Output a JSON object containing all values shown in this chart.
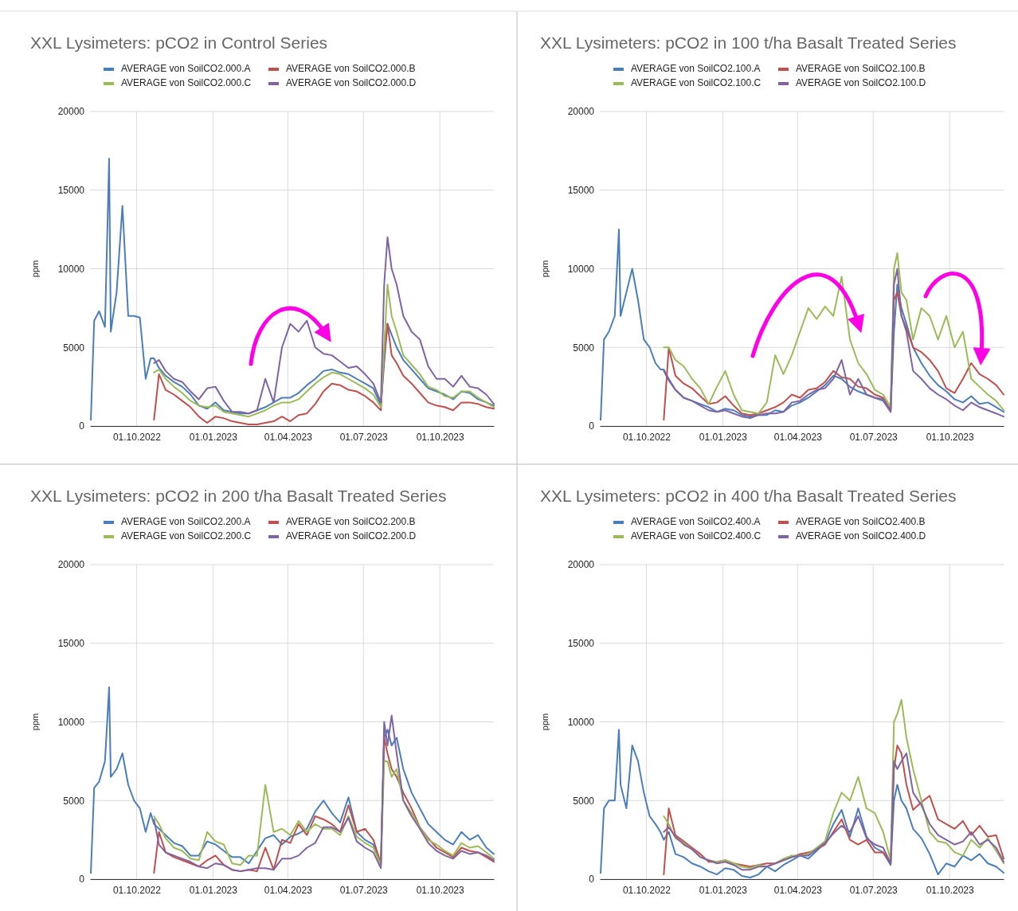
{
  "chart_data": [
    {
      "type": "line",
      "title": "XXL Lysimeters: pCO2 in Control Series",
      "ylabel": "ppm",
      "legend": "top",
      "grid": true,
      "xlim": [
        "2022-08-06",
        "2023-12-05"
      ],
      "ylim": [
        0,
        20000
      ],
      "yticks": [
        0,
        5000,
        10000,
        15000,
        20000
      ],
      "xticks": [
        {
          "value": "2022-10-01",
          "label": "01.10.2022"
        },
        {
          "value": "2023-01-01",
          "label": "01.01.2023"
        },
        {
          "value": "2023-04-01",
          "label": "01.04.2023"
        },
        {
          "value": "2023-07-01",
          "label": "01.07.2023"
        },
        {
          "value": "2023-10-01",
          "label": "01.10.2023"
        }
      ],
      "x": [
        "2022-08-07",
        "2022-08-11",
        "2022-08-17",
        "2022-08-24",
        "2022-08-29",
        "2022-08-31",
        "2022-09-07",
        "2022-09-14",
        "2022-09-21",
        "2022-09-28",
        "2022-10-05",
        "2022-10-12",
        "2022-10-18",
        "2022-10-22",
        "2022-10-28",
        "2022-11-05",
        "2022-11-15",
        "2022-11-25",
        "2022-12-05",
        "2022-12-15",
        "2022-12-25",
        "2023-01-04",
        "2023-01-14",
        "2023-01-24",
        "2023-02-03",
        "2023-02-13",
        "2023-02-23",
        "2023-03-05",
        "2023-03-15",
        "2023-03-25",
        "2023-04-04",
        "2023-04-14",
        "2023-04-24",
        "2023-05-04",
        "2023-05-14",
        "2023-05-24",
        "2023-06-03",
        "2023-06-13",
        "2023-06-23",
        "2023-07-03",
        "2023-07-13",
        "2023-07-22",
        "2023-07-26",
        "2023-07-30",
        "2023-08-04",
        "2023-08-10",
        "2023-08-18",
        "2023-08-28",
        "2023-09-07",
        "2023-09-17",
        "2023-09-27",
        "2023-10-07",
        "2023-10-17",
        "2023-10-27",
        "2023-11-06",
        "2023-11-16",
        "2023-11-26",
        "2023-12-05"
      ],
      "series": [
        {
          "name": "AVERAGE von SoilCO2.000.A",
          "color": "#4a7ebb",
          "values": [
            400,
            6700,
            7300,
            6300,
            17000,
            6000,
            8500,
            14000,
            7000,
            7000,
            6900,
            3000,
            4300,
            4300,
            3700,
            3200,
            2800,
            2500,
            2000,
            1300,
            1100,
            1500,
            1000,
            900,
            800,
            800,
            1000,
            1200,
            1500,
            1800,
            1800,
            2100,
            2600,
            3000,
            3500,
            3600,
            3400,
            3300,
            3000,
            2700,
            2400,
            1300,
            4000,
            6500,
            5800,
            5000,
            4200,
            3600,
            3000,
            2400,
            2200,
            2000,
            1700,
            2200,
            2100,
            1700,
            1500,
            1300
          ]
        },
        {
          "name": "AVERAGE von SoilCO2.000.B",
          "color": "#c0504d",
          "values": [
            null,
            null,
            null,
            null,
            null,
            null,
            null,
            null,
            null,
            null,
            null,
            null,
            null,
            400,
            3300,
            2300,
            2000,
            1600,
            1200,
            600,
            200,
            600,
            500,
            300,
            200,
            100,
            100,
            200,
            300,
            600,
            300,
            700,
            800,
            1400,
            2200,
            2700,
            2600,
            2300,
            2200,
            1900,
            1500,
            1000,
            4500,
            6500,
            4500,
            4000,
            3200,
            2700,
            2100,
            1500,
            1300,
            1200,
            1000,
            1500,
            1500,
            1400,
            1200,
            1100
          ]
        },
        {
          "name": "AVERAGE von SoilCO2.000.C",
          "color": "#9bbb59",
          "values": [
            null,
            null,
            null,
            null,
            null,
            null,
            null,
            null,
            null,
            null,
            null,
            null,
            null,
            3400,
            3600,
            3000,
            2500,
            2100,
            1600,
            1300,
            1200,
            1300,
            900,
            800,
            700,
            600,
            800,
            1000,
            1300,
            1500,
            1500,
            1700,
            2200,
            2700,
            3100,
            3400,
            3300,
            3000,
            2700,
            2400,
            2000,
            1200,
            5000,
            9000,
            7000,
            6000,
            4500,
            3900,
            3300,
            2500,
            2300,
            1900,
            1800,
            2200,
            2200,
            1800,
            1500,
            1200
          ]
        },
        {
          "name": "AVERAGE von SoilCO2.000.D",
          "color": "#8064a2",
          "values": [
            null,
            null,
            null,
            null,
            null,
            null,
            null,
            null,
            null,
            null,
            null,
            null,
            null,
            4000,
            4200,
            3500,
            3000,
            2800,
            2200,
            1700,
            2400,
            2500,
            1600,
            900,
            900,
            800,
            1000,
            3000,
            1500,
            5000,
            6500,
            6000,
            6700,
            5000,
            4600,
            4500,
            4100,
            3700,
            3800,
            3300,
            2700,
            1500,
            9000,
            12000,
            10000,
            9000,
            7000,
            6000,
            5500,
            3800,
            3000,
            3000,
            2500,
            3200,
            2500,
            2400,
            2000,
            1400
          ]
        }
      ]
    },
    {
      "type": "line",
      "title": "XXL Lysimeters: pCO2 in 100 t/ha Basalt Treated Series",
      "ylabel": "ppm",
      "legend": "top",
      "grid": true,
      "xlim": [
        "2022-08-06",
        "2023-12-05"
      ],
      "ylim": [
        0,
        20000
      ],
      "yticks": [
        0,
        5000,
        10000,
        15000,
        20000
      ],
      "xticks": [
        {
          "value": "2022-10-01",
          "label": "01.10.2022"
        },
        {
          "value": "2023-01-01",
          "label": "01.01.2023"
        },
        {
          "value": "2023-04-01",
          "label": "01.04.2023"
        },
        {
          "value": "2023-07-01",
          "label": "01.07.2023"
        },
        {
          "value": "2023-10-01",
          "label": "01.10.2023"
        }
      ],
      "x": [
        "2022-08-07",
        "2022-08-11",
        "2022-08-17",
        "2022-08-24",
        "2022-08-29",
        "2022-08-31",
        "2022-09-07",
        "2022-09-14",
        "2022-09-21",
        "2022-09-28",
        "2022-10-05",
        "2022-10-12",
        "2022-10-18",
        "2022-10-22",
        "2022-10-28",
        "2022-11-05",
        "2022-11-15",
        "2022-11-25",
        "2022-12-05",
        "2022-12-15",
        "2022-12-25",
        "2023-01-04",
        "2023-01-14",
        "2023-01-24",
        "2023-02-03",
        "2023-02-13",
        "2023-02-23",
        "2023-03-05",
        "2023-03-15",
        "2023-03-25",
        "2023-04-04",
        "2023-04-14",
        "2023-04-24",
        "2023-05-04",
        "2023-05-14",
        "2023-05-24",
        "2023-06-03",
        "2023-06-13",
        "2023-06-23",
        "2023-07-03",
        "2023-07-13",
        "2023-07-22",
        "2023-07-26",
        "2023-07-30",
        "2023-08-04",
        "2023-08-10",
        "2023-08-18",
        "2023-08-28",
        "2023-09-07",
        "2023-09-17",
        "2023-09-27",
        "2023-10-07",
        "2023-10-17",
        "2023-10-27",
        "2023-11-06",
        "2023-11-16",
        "2023-11-26",
        "2023-12-05"
      ],
      "series": [
        {
          "name": "AVERAGE von SoilCO2.100.A",
          "color": "#4a7ebb",
          "values": [
            400,
            5500,
            6000,
            7000,
            12500,
            7000,
            8500,
            10000,
            8000,
            5500,
            5000,
            4000,
            3600,
            3600,
            3000,
            2300,
            1800,
            1600,
            1400,
            1200,
            900,
            1100,
            1000,
            700,
            600,
            700,
            700,
            1000,
            900,
            1300,
            1500,
            1800,
            2200,
            2600,
            3200,
            3000,
            2500,
            2200,
            2000,
            1800,
            1600,
            900,
            6000,
            9000,
            7500,
            6500,
            5000,
            4000,
            3200,
            2600,
            2200,
            1700,
            1500,
            1900,
            1400,
            1500,
            1200,
            900
          ]
        },
        {
          "name": "AVERAGE von SoilCO2.100.B",
          "color": "#c0504d",
          "values": [
            null,
            null,
            null,
            null,
            null,
            null,
            null,
            null,
            null,
            null,
            null,
            null,
            null,
            400,
            5000,
            3200,
            2700,
            2400,
            1900,
            1400,
            1500,
            1900,
            1300,
            800,
            700,
            800,
            1000,
            1200,
            1500,
            2000,
            1800,
            2300,
            2400,
            2800,
            3500,
            3100,
            3000,
            2500,
            2400,
            2000,
            1800,
            1000,
            8000,
            8500,
            7000,
            6200,
            5000,
            4700,
            4200,
            3500,
            2400,
            2100,
            3000,
            4000,
            3300,
            3000,
            2600,
            2000
          ]
        },
        {
          "name": "AVERAGE von SoilCO2.100.C",
          "color": "#9bbb59",
          "values": [
            null,
            null,
            null,
            null,
            null,
            null,
            null,
            null,
            null,
            null,
            null,
            null,
            null,
            5000,
            5000,
            4200,
            3800,
            3000,
            2400,
            1400,
            2500,
            3500,
            2000,
            1000,
            900,
            800,
            1500,
            4500,
            3300,
            4500,
            6000,
            7500,
            6800,
            7600,
            7000,
            9500,
            5500,
            4000,
            3300,
            2300,
            2000,
            1200,
            10000,
            11000,
            8500,
            8000,
            5500,
            7500,
            7000,
            5500,
            7000,
            5000,
            6000,
            3000,
            2500,
            2000,
            1600,
            1000
          ]
        },
        {
          "name": "AVERAGE von SoilCO2.100.D",
          "color": "#8064a2",
          "values": [
            null,
            null,
            null,
            null,
            null,
            null,
            null,
            null,
            null,
            null,
            null,
            null,
            null,
            3500,
            2900,
            2300,
            1800,
            1600,
            1300,
            1000,
            900,
            1000,
            800,
            600,
            500,
            700,
            800,
            800,
            900,
            1500,
            1600,
            2000,
            2300,
            2400,
            3000,
            4200,
            2000,
            3000,
            2000,
            1800,
            1700,
            900,
            9000,
            10000,
            7000,
            6000,
            3500,
            3000,
            2400,
            2000,
            1700,
            1300,
            1000,
            1500,
            1200,
            1000,
            800,
            600
          ]
        }
      ]
    },
    {
      "type": "line",
      "title": "XXL Lysimeters: pCO2 in 200 t/ha Basalt Treated Series",
      "ylabel": "ppm",
      "legend": "top",
      "grid": true,
      "xlim": [
        "2022-08-06",
        "2023-12-05"
      ],
      "ylim": [
        0,
        20000
      ],
      "yticks": [
        0,
        5000,
        10000,
        15000,
        20000
      ],
      "xticks": [
        {
          "value": "2022-10-01",
          "label": "01.10.2022"
        },
        {
          "value": "2023-01-01",
          "label": "01.01.2023"
        },
        {
          "value": "2023-04-01",
          "label": "01.04.2023"
        },
        {
          "value": "2023-07-01",
          "label": "01.07.2023"
        },
        {
          "value": "2023-10-01",
          "label": "01.10.2023"
        }
      ],
      "x": [
        "2022-08-07",
        "2022-08-11",
        "2022-08-17",
        "2022-08-24",
        "2022-08-29",
        "2022-08-31",
        "2022-09-07",
        "2022-09-14",
        "2022-09-21",
        "2022-09-28",
        "2022-10-05",
        "2022-10-12",
        "2022-10-18",
        "2022-10-22",
        "2022-10-28",
        "2022-11-05",
        "2022-11-15",
        "2022-11-25",
        "2022-12-05",
        "2022-12-15",
        "2022-12-25",
        "2023-01-04",
        "2023-01-14",
        "2023-01-24",
        "2023-02-03",
        "2023-02-13",
        "2023-02-23",
        "2023-03-05",
        "2023-03-15",
        "2023-03-25",
        "2023-04-04",
        "2023-04-14",
        "2023-04-24",
        "2023-05-04",
        "2023-05-14",
        "2023-05-24",
        "2023-06-03",
        "2023-06-13",
        "2023-06-23",
        "2023-07-03",
        "2023-07-13",
        "2023-07-22",
        "2023-07-26",
        "2023-07-30",
        "2023-08-04",
        "2023-08-10",
        "2023-08-18",
        "2023-08-28",
        "2023-09-07",
        "2023-09-17",
        "2023-09-27",
        "2023-10-07",
        "2023-10-17",
        "2023-10-27",
        "2023-11-06",
        "2023-11-16",
        "2023-11-26",
        "2023-12-05"
      ],
      "series": [
        {
          "name": "AVERAGE von SoilCO2.200.A",
          "color": "#4a7ebb",
          "values": [
            400,
            5800,
            6200,
            7500,
            12200,
            6500,
            7000,
            8000,
            6000,
            5000,
            4500,
            3000,
            4200,
            3500,
            3200,
            2800,
            2300,
            2100,
            1500,
            1500,
            2400,
            2200,
            1800,
            1400,
            1400,
            1000,
            1800,
            2600,
            2800,
            2200,
            2700,
            2900,
            3200,
            4300,
            5000,
            4200,
            3600,
            5200,
            3000,
            2500,
            2200,
            900,
            9000,
            9500,
            8500,
            9000,
            7000,
            5500,
            4500,
            3500,
            3000,
            2500,
            2200,
            3000,
            2500,
            2800,
            2000,
            1600
          ]
        },
        {
          "name": "AVERAGE von SoilCO2.200.B",
          "color": "#c0504d",
          "values": [
            null,
            null,
            null,
            null,
            null,
            null,
            null,
            null,
            null,
            null,
            null,
            null,
            null,
            400,
            3000,
            1700,
            1400,
            1200,
            1000,
            800,
            1200,
            1500,
            900,
            600,
            500,
            600,
            500,
            2000,
            600,
            2500,
            2300,
            3500,
            2800,
            4000,
            3800,
            3500,
            3000,
            4700,
            3000,
            3200,
            2500,
            1000,
            9000,
            8000,
            7000,
            6500,
            5500,
            4500,
            3300,
            2600,
            2000,
            1700,
            1400,
            2000,
            1800,
            1700,
            1400,
            1100
          ]
        },
        {
          "name": "AVERAGE von SoilCO2.200.C",
          "color": "#9bbb59",
          "values": [
            null,
            null,
            null,
            null,
            null,
            null,
            null,
            null,
            null,
            null,
            null,
            null,
            null,
            4000,
            3500,
            2600,
            2000,
            1800,
            1300,
            1200,
            3000,
            2400,
            2200,
            1000,
            900,
            1500,
            1500,
            6000,
            3000,
            3200,
            2800,
            3700,
            3000,
            3500,
            3200,
            3200,
            2800,
            4000,
            2700,
            2300,
            2000,
            900,
            7500,
            7500,
            6500,
            7000,
            5000,
            4200,
            3300,
            2500,
            2200,
            1800,
            1500,
            2300,
            2000,
            2100,
            1700,
            1300
          ]
        },
        {
          "name": "AVERAGE von SoilCO2.200.D",
          "color": "#8064a2",
          "values": [
            null,
            null,
            null,
            null,
            null,
            null,
            null,
            null,
            null,
            null,
            null,
            null,
            null,
            3800,
            2200,
            1700,
            1500,
            1300,
            1100,
            800,
            700,
            1000,
            900,
            600,
            500,
            600,
            700,
            700,
            600,
            1300,
            1300,
            1500,
            2000,
            2300,
            3300,
            3300,
            3000,
            3900,
            2400,
            2000,
            1700,
            700,
            10000,
            8500,
            10400,
            8000,
            5000,
            4000,
            3200,
            2300,
            1800,
            1500,
            1300,
            1800,
            1600,
            1700,
            1500,
            1200
          ]
        }
      ]
    },
    {
      "type": "line",
      "title": "XXL Lysimeters: pCO2 in 400 t/ha Basalt Treated Series",
      "ylabel": "ppm",
      "legend": "top",
      "grid": true,
      "xlim": [
        "2022-08-06",
        "2023-12-05"
      ],
      "ylim": [
        0,
        20000
      ],
      "yticks": [
        0,
        5000,
        10000,
        15000,
        20000
      ],
      "xticks": [
        {
          "value": "2022-10-01",
          "label": "01.10.2022"
        },
        {
          "value": "2023-01-01",
          "label": "01.01.2023"
        },
        {
          "value": "2023-04-01",
          "label": "01.04.2023"
        },
        {
          "value": "2023-07-01",
          "label": "01.07.2023"
        },
        {
          "value": "2023-10-01",
          "label": "01.10.2023"
        }
      ],
      "x": [
        "2022-08-07",
        "2022-08-11",
        "2022-08-17",
        "2022-08-24",
        "2022-08-29",
        "2022-08-31",
        "2022-09-07",
        "2022-09-14",
        "2022-09-21",
        "2022-09-28",
        "2022-10-05",
        "2022-10-12",
        "2022-10-18",
        "2022-10-22",
        "2022-10-28",
        "2022-11-05",
        "2022-11-15",
        "2022-11-25",
        "2022-12-05",
        "2022-12-15",
        "2022-12-25",
        "2023-01-04",
        "2023-01-14",
        "2023-01-24",
        "2023-02-03",
        "2023-02-13",
        "2023-02-23",
        "2023-03-05",
        "2023-03-15",
        "2023-03-25",
        "2023-04-04",
        "2023-04-14",
        "2023-04-24",
        "2023-05-04",
        "2023-05-14",
        "2023-05-24",
        "2023-06-03",
        "2023-06-13",
        "2023-06-23",
        "2023-07-03",
        "2023-07-13",
        "2023-07-22",
        "2023-07-26",
        "2023-07-30",
        "2023-08-04",
        "2023-08-10",
        "2023-08-18",
        "2023-08-28",
        "2023-09-07",
        "2023-09-17",
        "2023-09-27",
        "2023-10-07",
        "2023-10-17",
        "2023-10-27",
        "2023-11-06",
        "2023-11-16",
        "2023-11-26",
        "2023-12-05"
      ],
      "series": [
        {
          "name": "AVERAGE von SoilCO2.400.A",
          "color": "#4a7ebb",
          "values": [
            400,
            4500,
            5000,
            5000,
            9500,
            6000,
            4500,
            8500,
            7500,
            5500,
            4000,
            3500,
            3000,
            2500,
            3000,
            1600,
            1400,
            1000,
            800,
            500,
            300,
            700,
            600,
            200,
            100,
            300,
            800,
            500,
            900,
            1200,
            1500,
            1300,
            1800,
            2300,
            3500,
            4400,
            2700,
            4500,
            2700,
            2000,
            1700,
            900,
            5000,
            6000,
            5000,
            4500,
            3200,
            2600,
            1600,
            300,
            1000,
            800,
            1500,
            1200,
            1600,
            1000,
            800,
            400
          ]
        },
        {
          "name": "AVERAGE von SoilCO2.400.B",
          "color": "#c0504d",
          "values": [
            null,
            null,
            null,
            null,
            null,
            null,
            null,
            null,
            null,
            null,
            null,
            null,
            null,
            300,
            4500,
            2800,
            2400,
            2000,
            1600,
            1100,
            1100,
            1200,
            1000,
            900,
            800,
            900,
            1000,
            1000,
            1200,
            1400,
            1600,
            1700,
            1900,
            2200,
            3000,
            3800,
            2500,
            2200,
            2500,
            1700,
            1700,
            1000,
            7000,
            8500,
            8000,
            6000,
            4400,
            4900,
            5300,
            3800,
            3500,
            3200,
            3700,
            2800,
            3400,
            2700,
            2800,
            1300
          ]
        },
        {
          "name": "AVERAGE von SoilCO2.400.C",
          "color": "#9bbb59",
          "values": [
            null,
            null,
            null,
            null,
            null,
            null,
            null,
            null,
            null,
            null,
            null,
            null,
            null,
            4000,
            3500,
            2600,
            2300,
            1900,
            1400,
            1200,
            1100,
            1200,
            1000,
            800,
            700,
            900,
            800,
            1000,
            1300,
            1500,
            1500,
            1600,
            2000,
            2400,
            4200,
            5500,
            5000,
            6500,
            4500,
            4200,
            3000,
            1200,
            10000,
            10500,
            11400,
            9000,
            7000,
            5000,
            3000,
            2400,
            2300,
            1700,
            1500,
            2500,
            2000,
            2600,
            1800,
            1000
          ]
        },
        {
          "name": "AVERAGE von SoilCO2.400.D",
          "color": "#8064a2",
          "values": [
            null,
            null,
            null,
            null,
            null,
            null,
            null,
            null,
            null,
            null,
            null,
            null,
            null,
            3000,
            3300,
            2700,
            2200,
            1900,
            1400,
            1200,
            1000,
            1100,
            900,
            600,
            600,
            800,
            800,
            1000,
            1200,
            1400,
            1500,
            1500,
            1900,
            2300,
            2900,
            3400,
            3000,
            4000,
            2600,
            2200,
            2000,
            1000,
            7500,
            7000,
            7500,
            8000,
            5500,
            4700,
            3500,
            2800,
            2500,
            2200,
            2400,
            3000,
            2200,
            2500,
            2000,
            1100
          ]
        }
      ]
    }
  ]
}
